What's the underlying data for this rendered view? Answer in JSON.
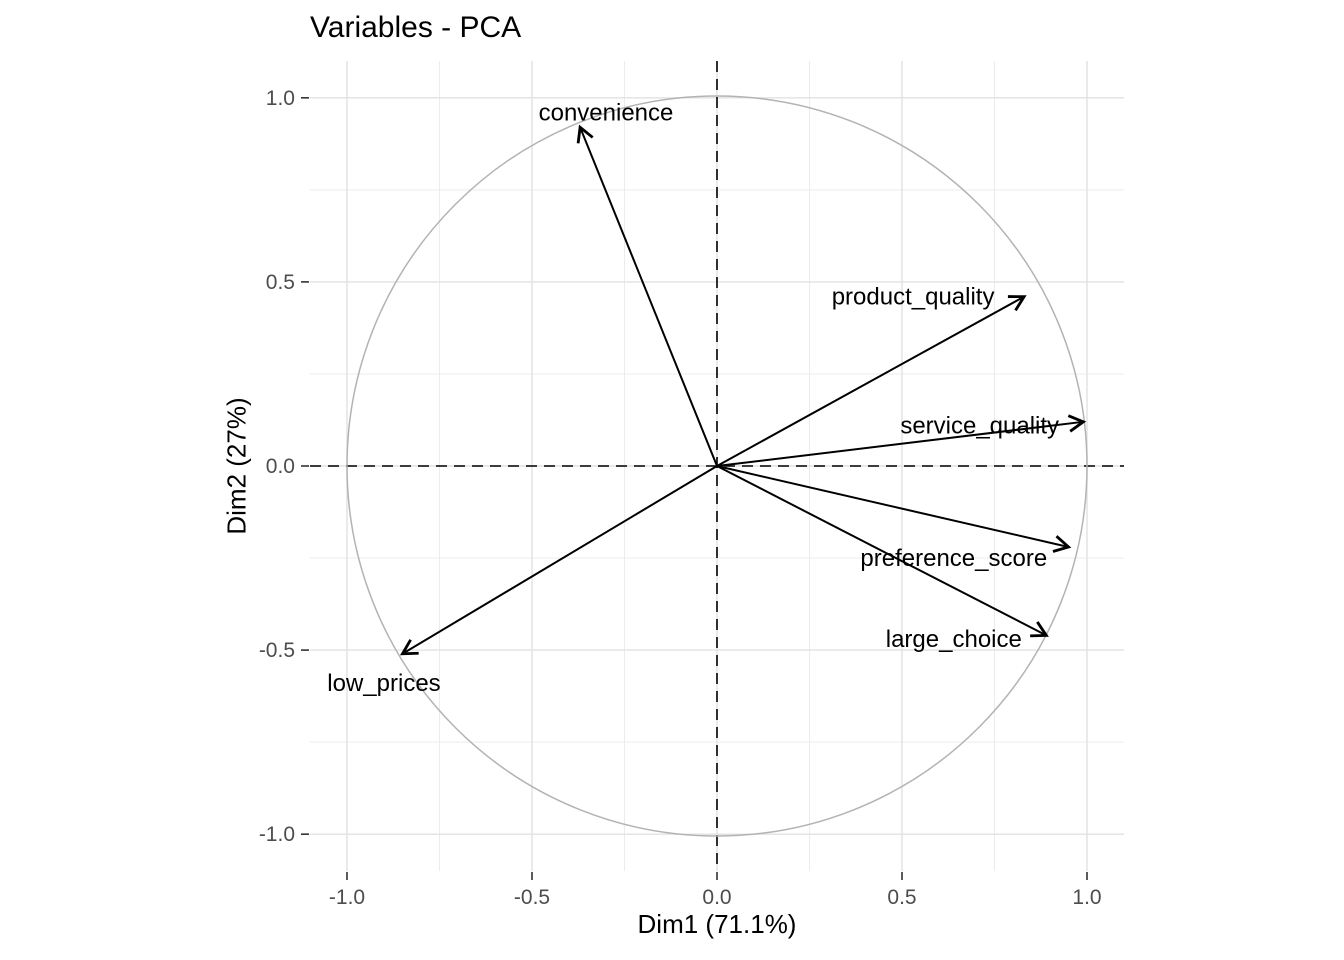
{
  "chart_data": {
    "type": "scatter",
    "subtype": "pca-variable-correlation-circle",
    "title": "Variables - PCA",
    "xlabel": "Dim1 (71.1%)",
    "ylabel": "Dim2 (27%)",
    "xlim": [
      -1.1,
      1.1
    ],
    "ylim": [
      -1.1,
      1.1
    ],
    "grid": true,
    "unit_circle": true,
    "zero_reference_lines": "dashed",
    "ticks": {
      "values": [
        -1.0,
        -0.5,
        0.0,
        0.5,
        1.0
      ],
      "labels": [
        "-1.0",
        "-0.5",
        "0.0",
        "0.5",
        "1.0"
      ],
      "minor_values": [
        -0.75,
        -0.25,
        0.25,
        0.75
      ]
    },
    "variables": [
      {
        "name": "convenience",
        "x": -0.37,
        "y": 0.92,
        "label_x": -0.3,
        "label_y": 0.96
      },
      {
        "name": "product_quality",
        "x": 0.83,
        "y": 0.46,
        "label_x": 0.53,
        "label_y": 0.46
      },
      {
        "name": "service_quality",
        "x": 0.99,
        "y": 0.12,
        "label_x": 0.71,
        "label_y": 0.11
      },
      {
        "name": "preference_score",
        "x": 0.95,
        "y": -0.22,
        "label_x": 0.64,
        "label_y": -0.25
      },
      {
        "name": "large_choice",
        "x": 0.89,
        "y": -0.46,
        "label_x": 0.64,
        "label_y": -0.47
      },
      {
        "name": "low_prices",
        "x": -0.85,
        "y": -0.51,
        "label_x": -0.9,
        "label_y": -0.59
      }
    ],
    "colors": {
      "arrow": "#000000",
      "variable_label": "#000000",
      "unit_circle": "#b3b3b3",
      "zero_line": "#000000",
      "grid_major": "#e2e2e2",
      "grid_minor": "#ececec",
      "tick_mark": "#333333",
      "tick_label": "#4d4d4d",
      "background": "#ffffff"
    }
  }
}
